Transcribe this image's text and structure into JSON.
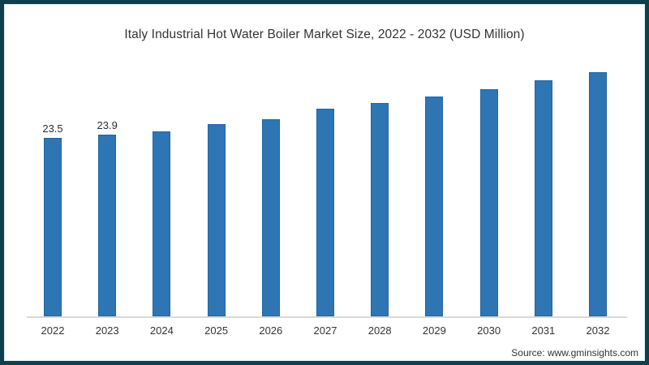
{
  "frame": {
    "border_color": "#0f3e4d",
    "background_color": "#ffffff"
  },
  "chart_data": {
    "type": "bar",
    "title": "Italy Industrial Hot Water Boiler Market Size, 2022 - 2032 (USD Million)",
    "categories": [
      "2022",
      "2023",
      "2024",
      "2025",
      "2026",
      "2027",
      "2028",
      "2029",
      "2030",
      "2031",
      "2032"
    ],
    "values": [
      23.5,
      23.9,
      24.3,
      25.3,
      25.9,
      27.3,
      28.1,
      28.9,
      29.9,
      31.1,
      32.1
    ],
    "data_labels": [
      "23.5",
      "23.9",
      "",
      "",
      "",
      "",
      "",
      "",
      "",
      "",
      ""
    ],
    "xlabel": "",
    "ylabel": "",
    "ylim": [
      0,
      36
    ],
    "y_axis_visible": false,
    "gridlines": false,
    "legend": false,
    "bar_color": "#2e75b4",
    "axis_line_color": "#d9d9d9",
    "title_color": "#333333",
    "tick_label_color": "#333333"
  },
  "source": {
    "label": "Source: www.gminsights.com"
  }
}
